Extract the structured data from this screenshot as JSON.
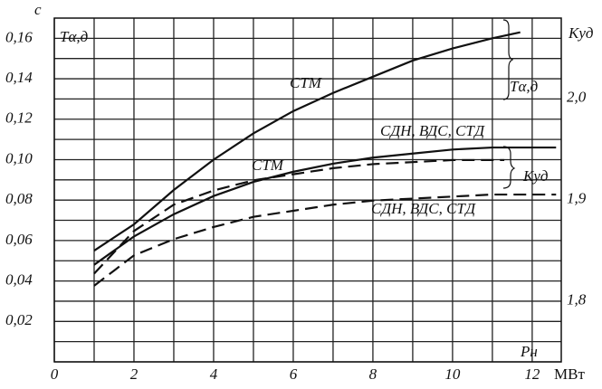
{
  "chart_data": {
    "type": "line",
    "y_label": "с",
    "y2_label": "Kуд",
    "x_label": "Pн",
    "x_unit": "МВт",
    "annotations": [
      "Tα,д",
      "Tα,д",
      "Kуд"
    ],
    "xlim": [
      0,
      12.73
    ],
    "ylim": [
      0,
      0.17
    ],
    "y2lim": [
      1.74,
      2.079
    ],
    "xticks": [
      0,
      2,
      4,
      6,
      8,
      10,
      12
    ],
    "yticks": [
      {
        "value": 0.02,
        "label": "0,02"
      },
      {
        "value": 0.04,
        "label": "0,04"
      },
      {
        "value": 0.06,
        "label": "0,06"
      },
      {
        "value": 0.08,
        "label": "0,08"
      },
      {
        "value": 0.1,
        "label": "0,10"
      },
      {
        "value": 0.12,
        "label": "0,12"
      },
      {
        "value": 0.14,
        "label": "0,14"
      },
      {
        "value": 0.16,
        "label": "0,16"
      }
    ],
    "y2ticks": [
      {
        "value": 1.8,
        "label": "1,8"
      },
      {
        "value": 1.9,
        "label": "1,9"
      },
      {
        "value": 2.0,
        "label": "2,0"
      }
    ],
    "xgrid": [
      0,
      1,
      2,
      3,
      4,
      5,
      6,
      7,
      8,
      9,
      10,
      11,
      12
    ],
    "ygrid": [
      0,
      0.01,
      0.02,
      0.03,
      0.04,
      0.05,
      0.06,
      0.07,
      0.08,
      0.09,
      0.1,
      0.11,
      0.12,
      0.13,
      0.14,
      0.15,
      0.16
    ],
    "grid": true,
    "series": [
      {
        "name": "СТМ",
        "color": "#111",
        "dash": false,
        "x": [
          1,
          2,
          3,
          4,
          5,
          6,
          7,
          8,
          9,
          10,
          11,
          11.7
        ],
        "values": [
          0.055,
          0.068,
          0.085,
          0.1,
          0.113,
          0.124,
          0.133,
          0.141,
          0.149,
          0.155,
          0.16,
          0.163
        ]
      },
      {
        "name": "СДН, ВДС, СТД",
        "color": "#111",
        "dash": false,
        "x": [
          1,
          2,
          3,
          4,
          5,
          6,
          7,
          8,
          9,
          10,
          11,
          12.6
        ],
        "values": [
          0.048,
          0.062,
          0.073,
          0.082,
          0.089,
          0.094,
          0.098,
          0.101,
          0.103,
          0.105,
          0.106,
          0.106
        ]
      },
      {
        "name": "СТМ",
        "color": "#111",
        "dash": true,
        "axis": "y2",
        "x": [
          1,
          2,
          3,
          4,
          5,
          6,
          7,
          8,
          9,
          10,
          11.3
        ],
        "values": [
          1.827,
          1.869,
          1.895,
          1.909,
          1.919,
          1.925,
          1.931,
          1.935,
          1.937,
          1.939,
          1.939
        ]
      },
      {
        "name": "СДН, ВДС, СТД",
        "color": "#111",
        "dash": true,
        "axis": "y2",
        "x": [
          1,
          2,
          3,
          4,
          5,
          6,
          7,
          8,
          9,
          10,
          11,
          12.6
        ],
        "values": [
          1.815,
          1.845,
          1.861,
          1.873,
          1.883,
          1.889,
          1.895,
          1.899,
          1.901,
          1.903,
          1.905,
          1.905
        ]
      }
    ]
  }
}
